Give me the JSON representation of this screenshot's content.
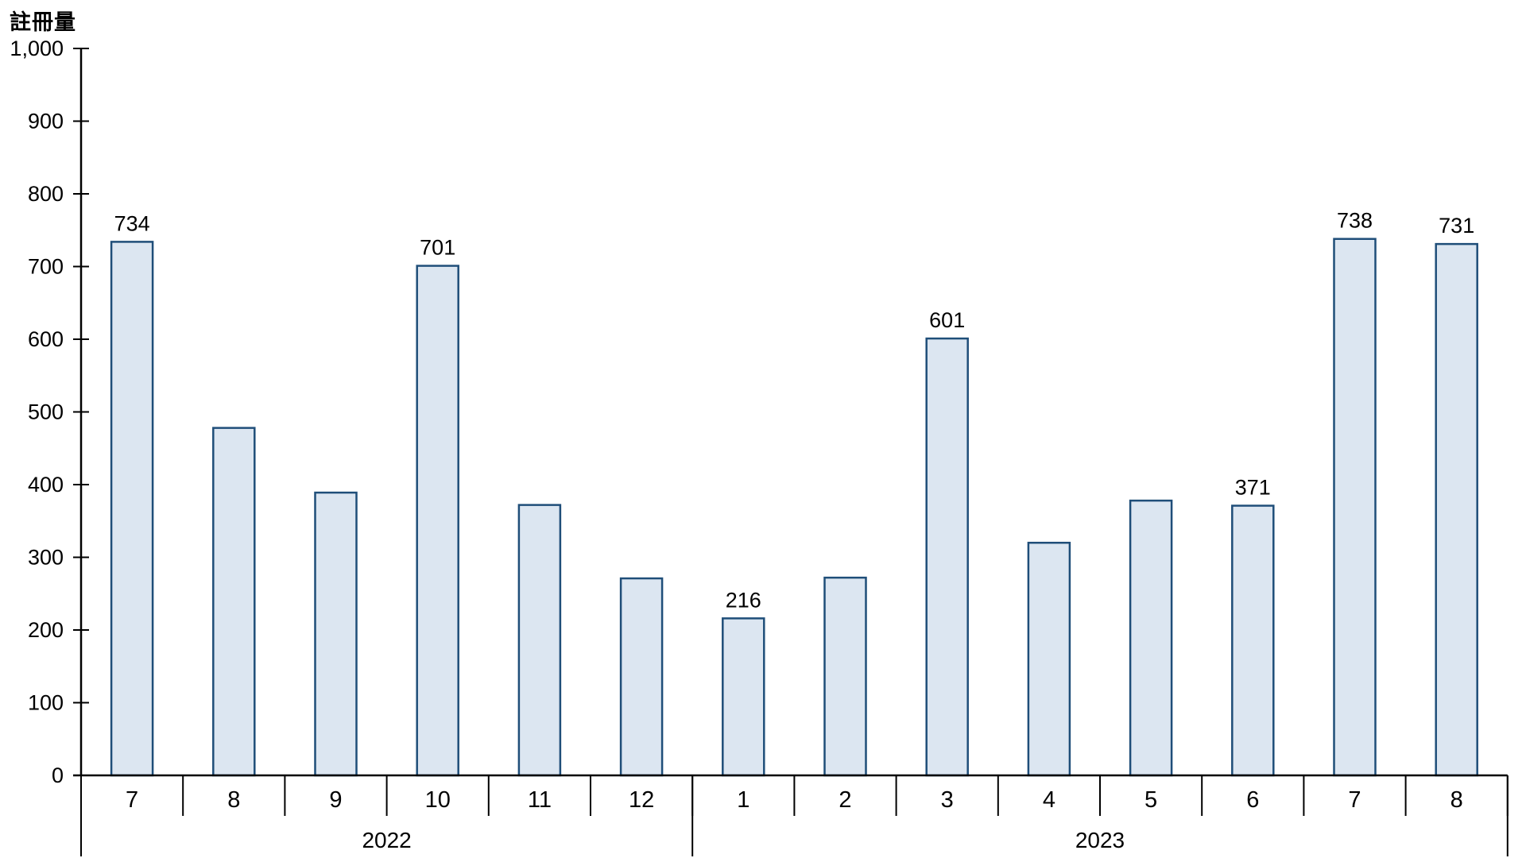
{
  "title": "註冊量",
  "chart_data": {
    "type": "bar",
    "title": "註冊量",
    "ylabel": "註冊量",
    "xlabel": "",
    "grid": false,
    "legend": null,
    "y_axis": {
      "min": 0,
      "max": 1000,
      "step": 100,
      "tick_labels": [
        "0",
        "100",
        "200",
        "300",
        "400",
        "500",
        "600",
        "700",
        "800",
        "900",
        "1,000"
      ]
    },
    "groups": [
      {
        "year": "2022",
        "months": [
          "7",
          "8",
          "9",
          "10",
          "11",
          "12"
        ]
      },
      {
        "year": "2023",
        "months": [
          "1",
          "2",
          "3",
          "4",
          "5",
          "6",
          "7",
          "8"
        ]
      }
    ],
    "bars": [
      {
        "year": "2022",
        "month": "7",
        "value": 734,
        "data_label": "734"
      },
      {
        "year": "2022",
        "month": "8",
        "value": 478,
        "data_label": null
      },
      {
        "year": "2022",
        "month": "9",
        "value": 389,
        "data_label": null
      },
      {
        "year": "2022",
        "month": "10",
        "value": 701,
        "data_label": "701"
      },
      {
        "year": "2022",
        "month": "11",
        "value": 372,
        "data_label": null
      },
      {
        "year": "2022",
        "month": "12",
        "value": 271,
        "data_label": null
      },
      {
        "year": "2023",
        "month": "1",
        "value": 216,
        "data_label": "216"
      },
      {
        "year": "2023",
        "month": "2",
        "value": 272,
        "data_label": null
      },
      {
        "year": "2023",
        "month": "3",
        "value": 601,
        "data_label": "601"
      },
      {
        "year": "2023",
        "month": "4",
        "value": 320,
        "data_label": null
      },
      {
        "year": "2023",
        "month": "5",
        "value": 378,
        "data_label": null
      },
      {
        "year": "2023",
        "month": "6",
        "value": 371,
        "data_label": "371"
      },
      {
        "year": "2023",
        "month": "7",
        "value": 738,
        "data_label": "738"
      },
      {
        "year": "2023",
        "month": "8",
        "value": 731,
        "data_label": "731"
      }
    ],
    "colors": {
      "bar_fill": "#dce6f1",
      "bar_border": "#1f4e79",
      "axis": "#000000",
      "text": "#000000"
    }
  }
}
